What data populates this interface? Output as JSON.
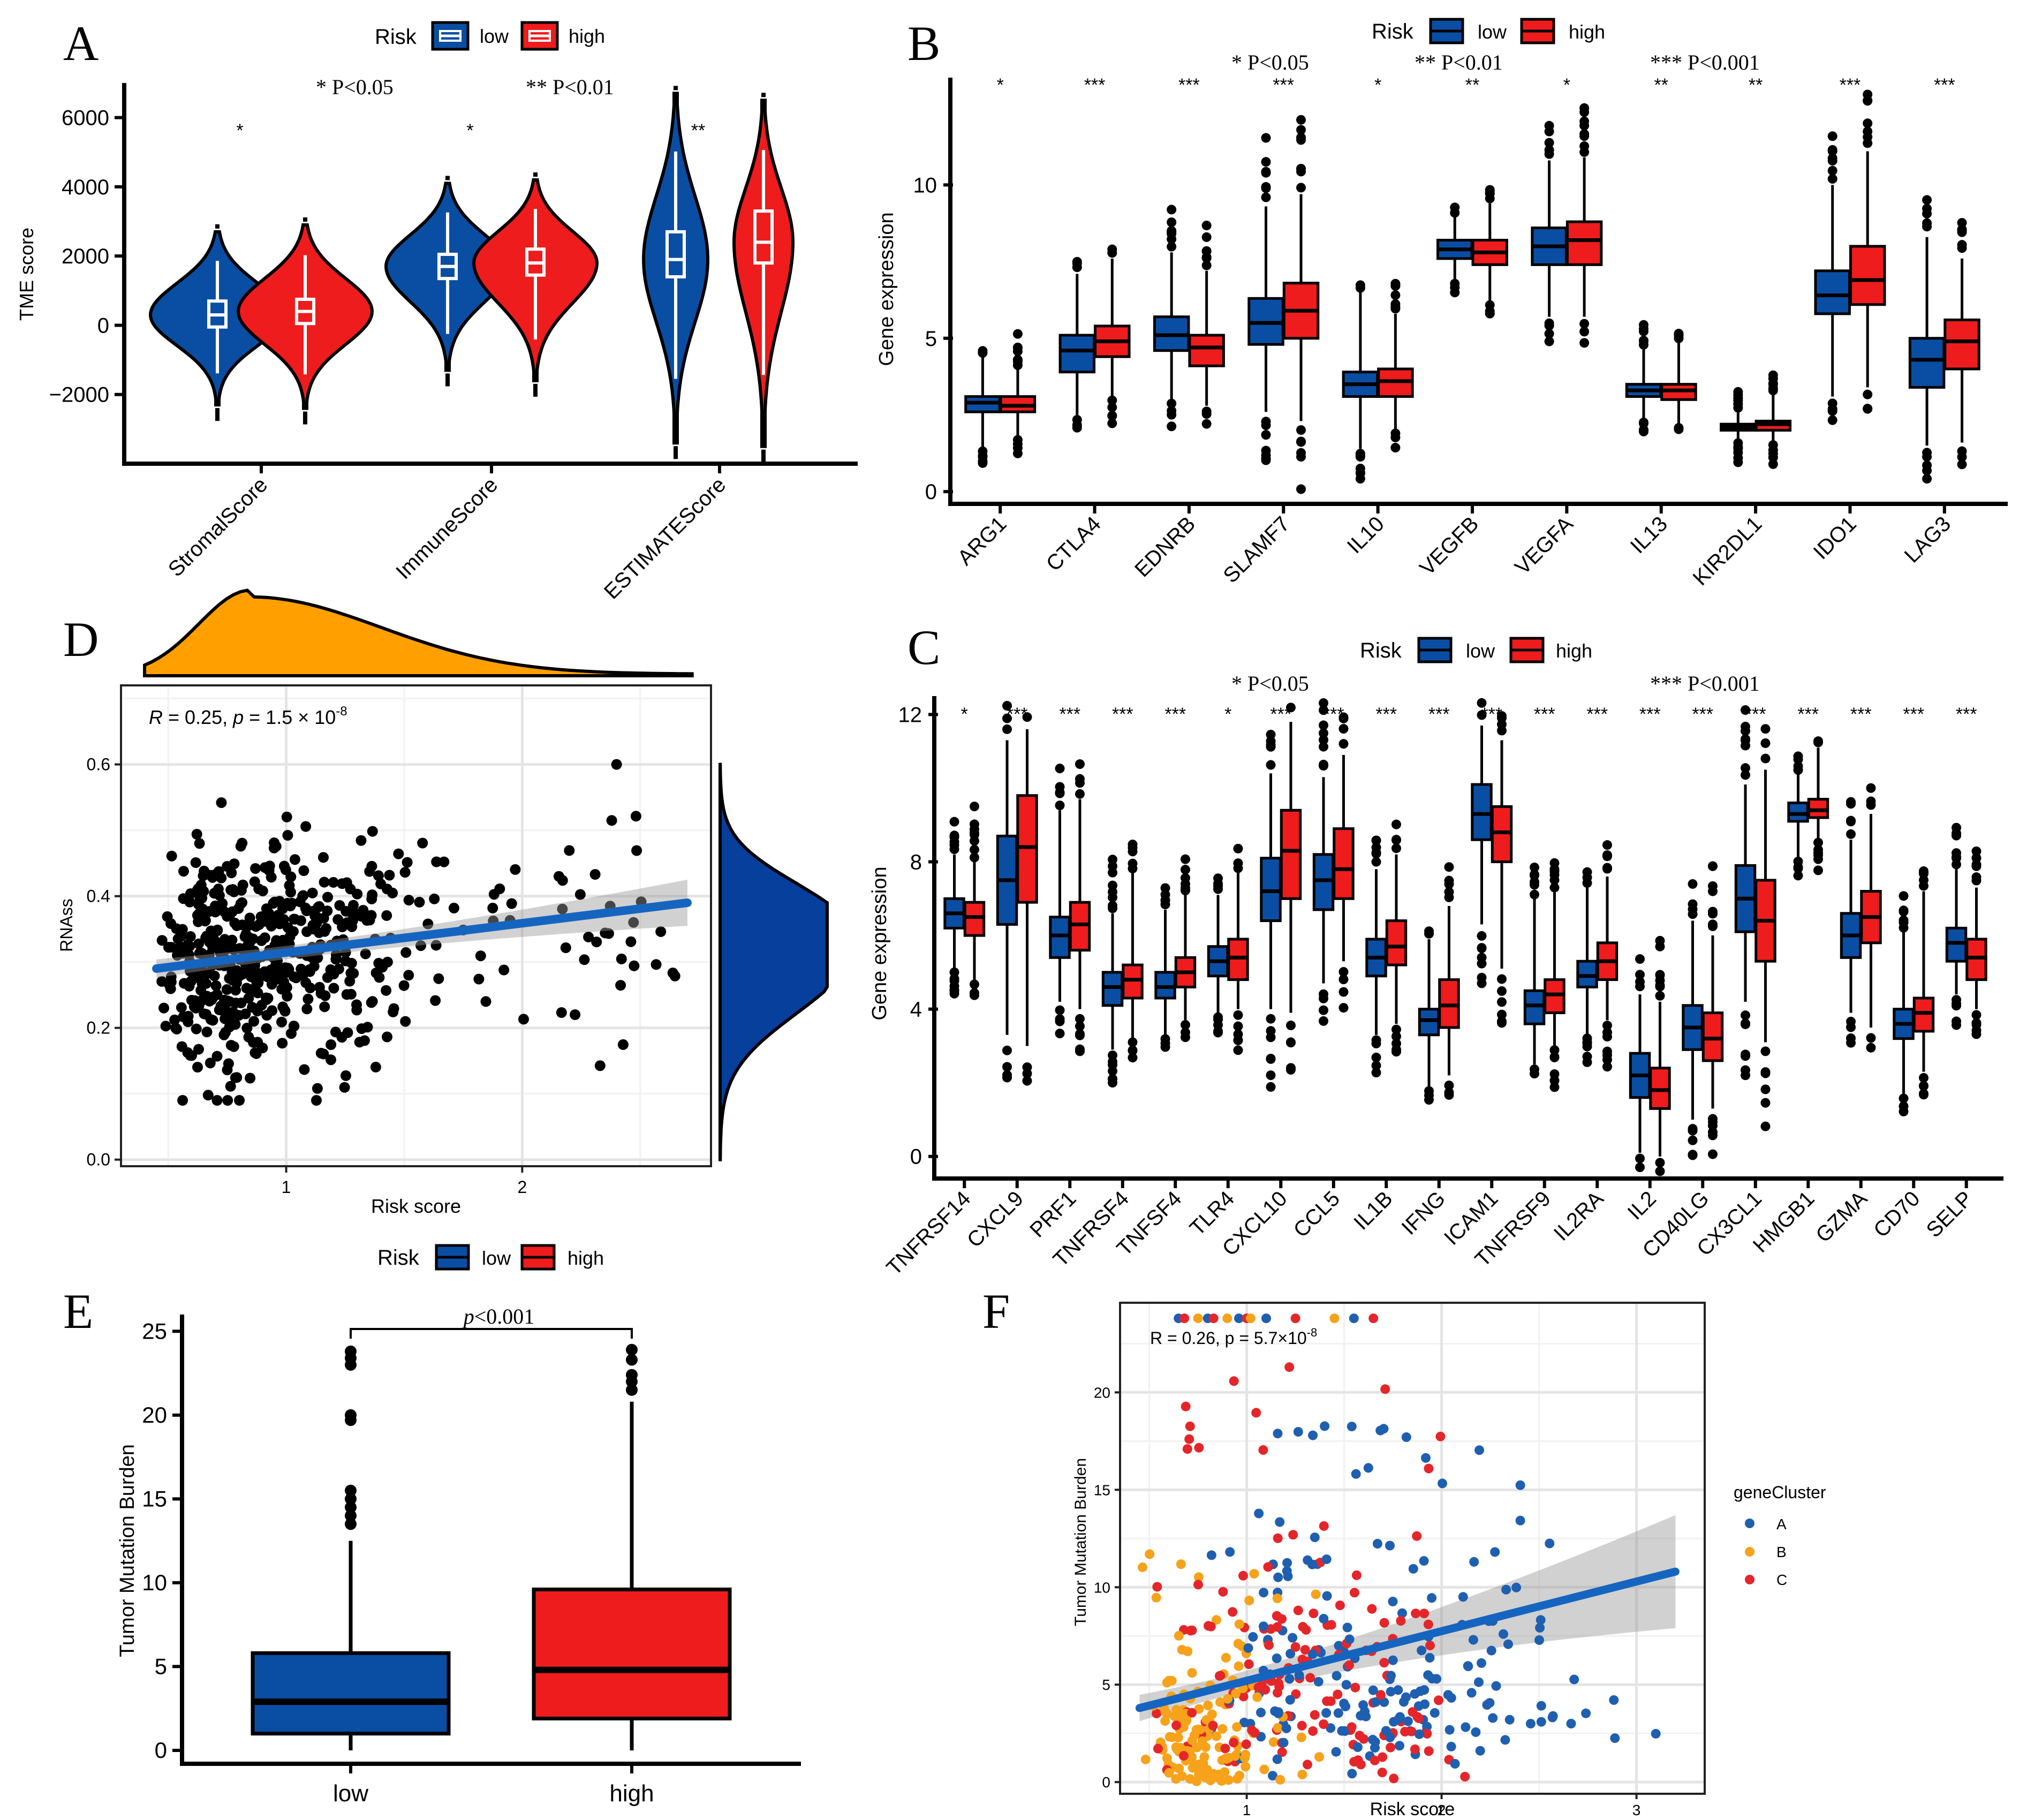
{
  "colors": {
    "low": "#0a4ea3",
    "high": "#ee1c1c",
    "blue_line": "#1565c0",
    "orange": "#ffa000",
    "navy": "#063f9c",
    "clusterA": "#1f5fb0",
    "clusterB": "#f6a21a",
    "clusterC": "#e4262a"
  },
  "chart_data": [
    {
      "panel": "A",
      "type": "violin",
      "legend": {
        "title": "Risk",
        "items": [
          "low",
          "high"
        ],
        "position": "top"
      },
      "ylabel": "TME score",
      "ylim": [
        -4000,
        7000
      ],
      "yticks": [
        "6000",
        "4000",
        "2000",
        "0",
        "−2000"
      ],
      "ytick_values": [
        6000,
        4000,
        2000,
        0,
        -2000
      ],
      "categories": [
        "StromalScore",
        "ImmuneScore",
        "ESTIMATEScore"
      ],
      "significance": [
        "*",
        "*",
        "**"
      ],
      "annotations": [
        "* P<0.05",
        "** P<0.01"
      ],
      "series": [
        {
          "name": "low",
          "median": [
            300,
            1700,
            1900
          ],
          "q1": [
            -50,
            1350,
            1400
          ],
          "q3": [
            700,
            2050,
            2700
          ],
          "min": [
            -2300,
            -1300,
            -3400
          ],
          "max": [
            2700,
            4100,
            6700
          ]
        },
        {
          "name": "high",
          "median": [
            400,
            1800,
            2400
          ],
          "q1": [
            50,
            1450,
            1800
          ],
          "q3": [
            750,
            2200,
            3300
          ],
          "min": [
            -2400,
            -1600,
            -3500
          ],
          "max": [
            2900,
            4200,
            6500
          ]
        }
      ]
    },
    {
      "panel": "B",
      "type": "boxplot",
      "legend": {
        "title": "Risk",
        "items": [
          "low",
          "high"
        ],
        "position": "top"
      },
      "ylabel": "Gene expression",
      "ylim": [
        -0.4,
        13.5
      ],
      "yticks": [
        "0",
        "5",
        "10"
      ],
      "ytick_values": [
        0,
        5,
        10
      ],
      "categories": [
        "ARG1",
        "CTLA4",
        "EDNRB",
        "SLAMF7",
        "IL10",
        "VEGFB",
        "VEGFA",
        "IL13",
        "KIR2DL1",
        "IDO1",
        "LAG3"
      ],
      "significance": [
        "*",
        "***",
        "***",
        "***",
        "*",
        "**",
        "*",
        "**",
        "**",
        "***",
        "***"
      ],
      "annotations": [
        "* P<0.05",
        "** P<0.01",
        "*** P<0.001"
      ],
      "series": [
        {
          "name": "low",
          "median": [
            2.9,
            4.6,
            5.1,
            5.5,
            3.5,
            7.9,
            8.0,
            3.3,
            2.1,
            6.4,
            4.3
          ],
          "q1": [
            2.6,
            3.9,
            4.6,
            4.8,
            3.1,
            7.6,
            7.4,
            3.1,
            2.0,
            5.8,
            3.4
          ],
          "q3": [
            3.1,
            5.1,
            5.7,
            6.3,
            3.9,
            8.2,
            8.6,
            3.5,
            2.2,
            7.2,
            5.0
          ],
          "min": [
            1.4,
            2.5,
            3.0,
            2.6,
            1.4,
            6.9,
            5.7,
            2.4,
            1.7,
            3.1,
            1.5
          ],
          "max": [
            4.4,
            7.1,
            7.8,
            9.3,
            6.5,
            9.0,
            10.8,
            4.7,
            2.6,
            10.0,
            8.3
          ]
        },
        {
          "name": "high",
          "median": [
            2.8,
            4.9,
            4.7,
            5.9,
            3.6,
            7.8,
            8.2,
            3.3,
            2.2,
            6.9,
            4.9
          ],
          "q1": [
            2.6,
            4.4,
            4.1,
            5.0,
            3.1,
            7.4,
            7.4,
            3.0,
            2.0,
            6.1,
            4.0
          ],
          "q3": [
            3.1,
            5.4,
            5.1,
            6.8,
            4.0,
            8.2,
            8.8,
            3.5,
            2.3,
            8.0,
            5.6
          ],
          "min": [
            1.8,
            3.1,
            2.8,
            2.3,
            2.0,
            6.2,
            5.7,
            2.2,
            1.6,
            3.4,
            1.6
          ],
          "max": [
            4.0,
            7.6,
            7.2,
            9.7,
            5.8,
            9.4,
            10.9,
            4.9,
            3.2,
            11.1,
            7.6
          ]
        }
      ]
    },
    {
      "panel": "C",
      "type": "boxplot",
      "legend": {
        "title": "Risk",
        "items": [
          "low",
          "high"
        ],
        "position": "top"
      },
      "ylabel": "Gene expression",
      "ylim": [
        -0.6,
        12.5
      ],
      "yticks": [
        "0",
        "4",
        "8",
        "12"
      ],
      "ytick_values": [
        0,
        4,
        8,
        12
      ],
      "categories": [
        "TNFRSF14",
        "CXCL9",
        "PRF1",
        "TNFRSF4",
        "TNFSF4",
        "TLR4",
        "CXCL10",
        "CCL5",
        "IL1B",
        "IFNG",
        "ICAM1",
        "TNFRSF9",
        "IL2RA",
        "IL2",
        "CD40LG",
        "CX3CL1",
        "HMGB1",
        "GZMA",
        "CD70",
        "SELP"
      ],
      "significance": [
        "*",
        "***",
        "***",
        "***",
        "***",
        "*",
        "***",
        "***",
        "***",
        "***",
        "***",
        "***",
        "***",
        "***",
        "***",
        "***",
        "***",
        "***",
        "***",
        "***"
      ],
      "annotations": [
        "* P<0.05",
        "*** P<0.001"
      ],
      "series": [
        {
          "name": "low",
          "median": [
            6.6,
            7.5,
            6.0,
            4.6,
            4.6,
            5.3,
            7.2,
            7.5,
            5.4,
            3.7,
            9.3,
            4.1,
            4.9,
            2.2,
            3.5,
            7.0,
            9.3,
            6.0,
            3.6,
            5.8
          ],
          "q1": [
            6.2,
            6.3,
            5.4,
            4.1,
            4.3,
            4.9,
            6.4,
            6.7,
            4.9,
            3.3,
            8.6,
            3.6,
            4.6,
            1.6,
            2.9,
            6.1,
            9.1,
            5.4,
            3.2,
            5.3
          ],
          "q3": [
            7.0,
            8.7,
            6.5,
            5.0,
            5.0,
            5.7,
            8.1,
            8.2,
            5.9,
            4.0,
            10.1,
            4.5,
            5.3,
            2.8,
            4.1,
            7.9,
            9.6,
            6.6,
            4.0,
            6.2
          ],
          "min": [
            5.1,
            3.3,
            4.2,
            2.9,
            3.3,
            3.9,
            4.0,
            4.7,
            3.3,
            1.9,
            6.3,
            2.5,
            3.3,
            0.1,
            1.0,
            4.2,
            8.1,
            3.9,
            1.7,
            4.4
          ],
          "max": [
            8.2,
            11.3,
            9.4,
            6.6,
            6.7,
            7.1,
            10.4,
            10.3,
            7.8,
            5.9,
            11.7,
            7.0,
            7.3,
            4.4,
            6.4,
            10.1,
            10.4,
            8.6,
            6.1,
            7.8
          ]
        },
        {
          "name": "high",
          "median": [
            6.5,
            8.4,
            6.3,
            4.8,
            5.0,
            5.4,
            8.3,
            7.8,
            5.7,
            4.1,
            8.8,
            4.4,
            5.3,
            1.8,
            3.2,
            6.4,
            9.4,
            6.5,
            3.9,
            5.4
          ],
          "q1": [
            6.0,
            6.9,
            5.6,
            4.3,
            4.6,
            4.8,
            7.0,
            7.0,
            5.2,
            3.5,
            8.0,
            3.9,
            4.8,
            1.3,
            2.6,
            5.3,
            9.2,
            5.8,
            3.4,
            4.8
          ],
          "q3": [
            6.9,
            9.8,
            6.9,
            5.2,
            5.4,
            5.9,
            9.4,
            8.9,
            6.4,
            4.8,
            9.5,
            4.8,
            5.8,
            2.4,
            3.9,
            7.5,
            9.7,
            7.2,
            4.3,
            5.9
          ],
          "min": [
            4.8,
            3.0,
            4.0,
            3.2,
            3.7,
            4.0,
            3.9,
            5.3,
            3.6,
            2.2,
            5.1,
            3.0,
            3.7,
            0.0,
            1.3,
            3.1,
            8.6,
            3.5,
            2.3,
            4.0
          ],
          "max": [
            8.0,
            11.6,
            9.7,
            7.7,
            7.1,
            7.7,
            11.8,
            10.9,
            8.2,
            6.8,
            11.3,
            7.2,
            7.6,
            4.2,
            6.0,
            10.5,
            11.1,
            9.3,
            7.2,
            7.3
          ]
        }
      ]
    },
    {
      "panel": "D",
      "type": "scatter",
      "annotation_parts": {
        "r": "R",
        "r_eq": " = 0.25, ",
        "p": "p",
        "p_eq": " = 1.5 × 10",
        "p_exp": "-8"
      },
      "xlabel": "Risk score",
      "ylabel": "RNAss",
      "xlim": [
        0.3,
        2.8
      ],
      "ylim": [
        -0.01,
        0.72
      ],
      "xticks": [
        "1",
        "2"
      ],
      "xtick_values": [
        1,
        2
      ],
      "yticks": [
        "0.0",
        "0.2",
        "0.4",
        "0.6"
      ],
      "ytick_values": [
        0.0,
        0.2,
        0.4,
        0.6
      ],
      "fit_line": {
        "x": [
          0.45,
          2.7
        ],
        "y": [
          0.29,
          0.39
        ]
      },
      "n_points": 560,
      "x_density_peak": 0.85,
      "y_density_peak": 0.29
    },
    {
      "panel": "E",
      "type": "boxplot",
      "legend": {
        "title": "Risk",
        "items": [
          "low",
          "high"
        ],
        "position": "top"
      },
      "ylabel": "Tumor Mutation Burden",
      "ylim": [
        -0.8,
        26
      ],
      "yticks": [
        "0",
        "5",
        "10",
        "15",
        "20",
        "25"
      ],
      "ytick_values": [
        0,
        5,
        10,
        15,
        20,
        25
      ],
      "categories": [
        "low",
        "high"
      ],
      "pvalue_label": "p",
      "pvalue_rest": "<0.001",
      "boxes": [
        {
          "name": "low",
          "median": 2.9,
          "q1": 1.0,
          "q3": 5.8,
          "min": 0.0,
          "max": 12.5,
          "outliers": [
            13.5,
            14.0,
            14.5,
            15.0,
            15.5,
            19.7,
            20.0,
            23.0,
            23.4,
            23.8
          ]
        },
        {
          "name": "high",
          "median": 4.8,
          "q1": 1.9,
          "q3": 9.6,
          "min": 0.0,
          "max": 20.8,
          "outliers": [
            21.5,
            22.0,
            22.4,
            23.3,
            23.9
          ]
        }
      ]
    },
    {
      "panel": "F",
      "type": "scatter",
      "annotation": "R = 0.26, p = 5.7×10",
      "annotation_exp": "-8",
      "xlabel": "Risk score",
      "ylabel": "Tumor Mutation Burden",
      "xlim": [
        0.35,
        3.35
      ],
      "ylim": [
        -0.6,
        24.6
      ],
      "xticks": [
        "1",
        "2",
        "3"
      ],
      "xtick_values": [
        1,
        2,
        3
      ],
      "yticks": [
        "0",
        "5",
        "10",
        "15",
        "20"
      ],
      "ytick_values": [
        0,
        5,
        10,
        15,
        20
      ],
      "legend": {
        "title": "geneCluster",
        "items": [
          "A",
          "B",
          "C"
        ],
        "position": "right"
      },
      "fit_line": {
        "x": [
          0.45,
          3.2
        ],
        "y": [
          3.8,
          10.8
        ]
      },
      "n_points": 470
    }
  ],
  "panel_labels": [
    "A",
    "B",
    "C",
    "D",
    "E",
    "F"
  ]
}
